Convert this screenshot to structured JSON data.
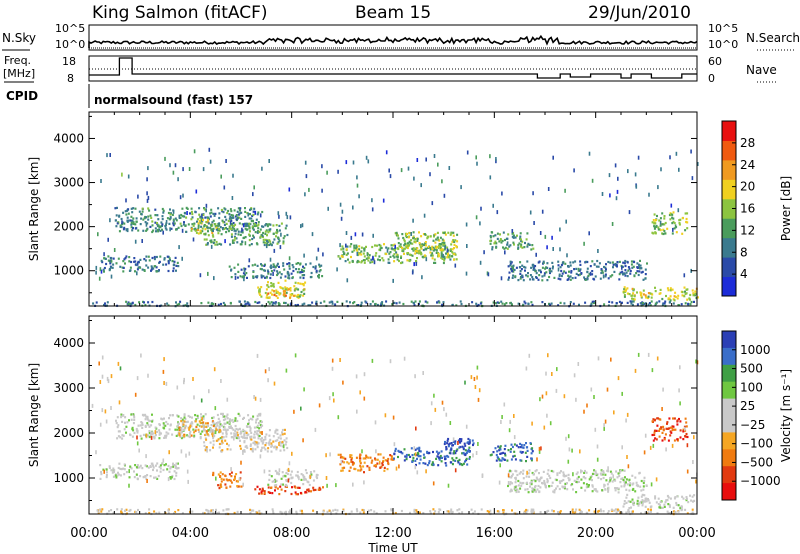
{
  "header": {
    "station": "King Salmon (fitACF)",
    "beam": "Beam 15",
    "date": "29/Jun/2010"
  },
  "top_panels": {
    "nsky_label": "N.Sky",
    "nsearch_label": "N.Search",
    "freq_label": "Freq.",
    "freq_unit": "[MHz]",
    "cpid_label": "CPID",
    "nave_label": "Nave",
    "nsky_ticks": [
      "10^5",
      "10^0"
    ],
    "nsearch_ticks": [
      "10^5",
      "10^0"
    ],
    "freq_ticks": [
      "18",
      "8"
    ],
    "nave_ticks": [
      "60",
      "0"
    ],
    "cpid_text": "normalsound (fast) 157"
  },
  "colors": {
    "power_scale": [
      "#1c2cd8",
      "#2a4aa8",
      "#3a7a8e",
      "#4a9c5c",
      "#8cc440",
      "#f0d020",
      "#f09a20",
      "#f05a10",
      "#e81010"
    ],
    "velocity_scale": [
      "#2b3fb5",
      "#3a6ec9",
      "#3f9f45",
      "#6fc741",
      "#c9c9c9",
      "#c9c9c9",
      "#f5a623",
      "#f07b10",
      "#e23a10",
      "#e80d0d"
    ]
  },
  "chart_data": [
    {
      "type": "heatmap",
      "panel": "power",
      "ylabel": "Slant Range [km]",
      "yticks": [
        "1000",
        "2000",
        "3000",
        "4000"
      ],
      "ylim": [
        200,
        4600
      ],
      "xlim_hours": [
        0,
        24
      ],
      "colorbar_label": "Power [dB]",
      "colorbar_ticks": [
        "4",
        "8",
        "12",
        "16",
        "20",
        "24",
        "28"
      ],
      "colorbar_range": [
        0,
        32
      ],
      "regions": [
        {
          "t0": 1.0,
          "t1": 6.8,
          "r0": 1900,
          "r1": 2450,
          "level": 10
        },
        {
          "t0": 4.0,
          "t1": 5.0,
          "r0": 1850,
          "r1": 2200,
          "level": 19
        },
        {
          "t0": 0.4,
          "t1": 3.5,
          "r0": 1000,
          "r1": 1350,
          "level": 8
        },
        {
          "t0": 4.5,
          "t1": 7.8,
          "r0": 1600,
          "r1": 2100,
          "level": 12
        },
        {
          "t0": 6.5,
          "t1": 8.5,
          "r0": 400,
          "r1": 800,
          "level": 18
        },
        {
          "t0": 7.0,
          "t1": 8.0,
          "r0": 450,
          "r1": 650,
          "level": 22
        },
        {
          "t0": 5.5,
          "t1": 9.2,
          "r0": 850,
          "r1": 1200,
          "level": 9
        },
        {
          "t0": 9.8,
          "t1": 14.5,
          "r0": 1200,
          "r1": 1650,
          "level": 14
        },
        {
          "t0": 12.0,
          "t1": 14.5,
          "r0": 1300,
          "r1": 1900,
          "level": 16
        },
        {
          "t0": 15.8,
          "t1": 17.5,
          "r0": 1500,
          "r1": 1900,
          "level": 12
        },
        {
          "t0": 16.5,
          "t1": 22.0,
          "r0": 800,
          "r1": 1250,
          "level": 7
        },
        {
          "t0": 21.0,
          "t1": 24.0,
          "r0": 350,
          "r1": 650,
          "level": 18
        },
        {
          "t0": 22.2,
          "t1": 23.6,
          "r0": 1850,
          "r1": 2350,
          "level": 16
        },
        {
          "t0": 0.0,
          "t1": 24.0,
          "r0": 220,
          "r1": 330,
          "level": 8
        }
      ]
    },
    {
      "type": "heatmap",
      "panel": "velocity",
      "ylabel": "Slant Range [km]",
      "yticks": [
        "1000",
        "2000",
        "3000",
        "4000"
      ],
      "ylim": [
        200,
        4600
      ],
      "xlim_hours": [
        0,
        24
      ],
      "xlabel": "Time UT",
      "xticks": [
        "00:00",
        "04:00",
        "08:00",
        "12:00",
        "16:00",
        "20:00",
        "00:00"
      ],
      "colorbar_label": "Velocity [m s⁻¹]",
      "colorbar_ticks": [
        "1000",
        "500",
        "100",
        "25",
        "−25",
        "−100",
        "−500",
        "−1000"
      ],
      "regions": [
        {
          "t0": 1.0,
          "t1": 6.8,
          "r0": 1900,
          "r1": 2450,
          "level": 4
        },
        {
          "t0": 3.5,
          "t1": 5.0,
          "r0": 1950,
          "r1": 2300,
          "level": 6
        },
        {
          "t0": 0.4,
          "t1": 3.5,
          "r0": 1000,
          "r1": 1350,
          "level": 4
        },
        {
          "t0": 4.5,
          "t1": 7.8,
          "r0": 1600,
          "r1": 2100,
          "level": 5
        },
        {
          "t0": 4.8,
          "t1": 6.0,
          "r0": 800,
          "r1": 1150,
          "level": 7
        },
        {
          "t0": 6.5,
          "t1": 9.2,
          "r0": 650,
          "r1": 850,
          "level": 8
        },
        {
          "t0": 7.0,
          "t1": 9.0,
          "r0": 850,
          "r1": 1200,
          "level": 4
        },
        {
          "t0": 9.8,
          "t1": 12.0,
          "r0": 1150,
          "r1": 1550,
          "level": 7
        },
        {
          "t0": 12.0,
          "t1": 15.0,
          "r0": 1300,
          "r1": 1700,
          "level": 1
        },
        {
          "t0": 14.0,
          "t1": 15.2,
          "r0": 1550,
          "r1": 1900,
          "level": 0
        },
        {
          "t0": 15.8,
          "t1": 17.5,
          "r0": 1400,
          "r1": 1800,
          "level": 1
        },
        {
          "t0": 16.5,
          "t1": 22.0,
          "r0": 700,
          "r1": 1200,
          "level": 4
        },
        {
          "t0": 21.0,
          "t1": 24.0,
          "r0": 350,
          "r1": 650,
          "level": 4
        },
        {
          "t0": 22.2,
          "t1": 23.6,
          "r0": 1850,
          "r1": 2350,
          "level": 8
        },
        {
          "t0": 0.0,
          "t1": 24.0,
          "r0": 220,
          "r1": 330,
          "level": 5
        }
      ]
    }
  ]
}
